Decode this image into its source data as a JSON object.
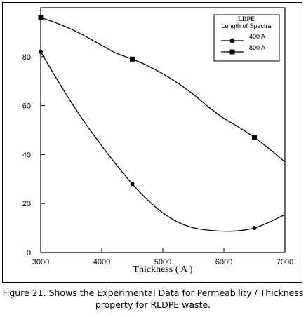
{
  "chart_data": {
    "type": "line",
    "title": "",
    "xlabel": "Thickness ( A )",
    "ylabel": "",
    "xlim": [
      3000,
      7000
    ],
    "ylim": [
      0,
      100
    ],
    "xticks": [
      3000,
      4000,
      5000,
      6000,
      7000
    ],
    "yticks": [
      0,
      20,
      40,
      60,
      80
    ],
    "grid": false,
    "legend": {
      "placement": "top-right",
      "title": "LDPE",
      "subtitle": "Length of Spectra"
    },
    "series": [
      {
        "name": "400 A",
        "marker": "circle",
        "points": [
          [
            3000,
            82
          ],
          [
            4500,
            28
          ],
          [
            6500,
            10
          ]
        ],
        "curve_x": [
          3000,
          3250,
          3500,
          3750,
          4000,
          4250,
          4500,
          4750,
          5000,
          5250,
          5500,
          5750,
          6000,
          6250,
          6500,
          6750,
          7000
        ],
        "curve_y": [
          82,
          71.4,
          61.4,
          52.1,
          43.6,
          35.5,
          28,
          21.5,
          16.2,
          12.4,
          10.1,
          9.1,
          8.7,
          8.9,
          10,
          12.5,
          15.5
        ]
      },
      {
        "name": "800 A",
        "marker": "square",
        "points": [
          [
            3000,
            96
          ],
          [
            4500,
            79
          ],
          [
            6500,
            47
          ]
        ],
        "curve_x": [
          3000,
          3250,
          3500,
          3750,
          4000,
          4250,
          4500,
          4750,
          5000,
          5250,
          5500,
          5750,
          6000,
          6250,
          6500,
          6750,
          7000
        ],
        "curve_y": [
          96,
          93.8,
          91.2,
          88.1,
          84.6,
          81.3,
          79,
          76.3,
          73,
          69.1,
          64.6,
          59.4,
          54.8,
          51.1,
          47,
          42.2,
          37
        ]
      }
    ]
  },
  "caption": {
    "line1": "Figure 21. Shows the Experimental Data for Permeability / Thickness",
    "line2": "property for RLDPE waste."
  }
}
